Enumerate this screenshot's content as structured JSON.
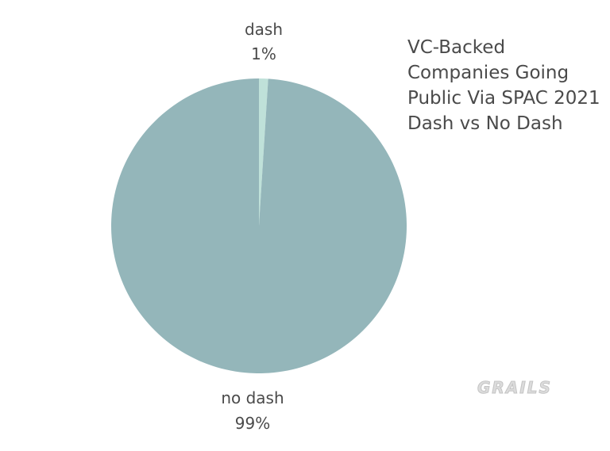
{
  "chart_data": {
    "type": "pie",
    "title_lines": [
      "VC-Backed",
      "Companies Going",
      "Public Via SPAC 2021",
      "Dash vs No Dash"
    ],
    "slices": [
      {
        "category": "dash",
        "value": 1,
        "value_label": "1%",
        "color": "#bfe1d9"
      },
      {
        "category": "no dash",
        "value": 99,
        "value_label": "99%",
        "color": "#94b6ba"
      }
    ],
    "start_angle_deg": 0,
    "direction": "clockwise",
    "legend": "none"
  },
  "watermark": "GRAILS"
}
